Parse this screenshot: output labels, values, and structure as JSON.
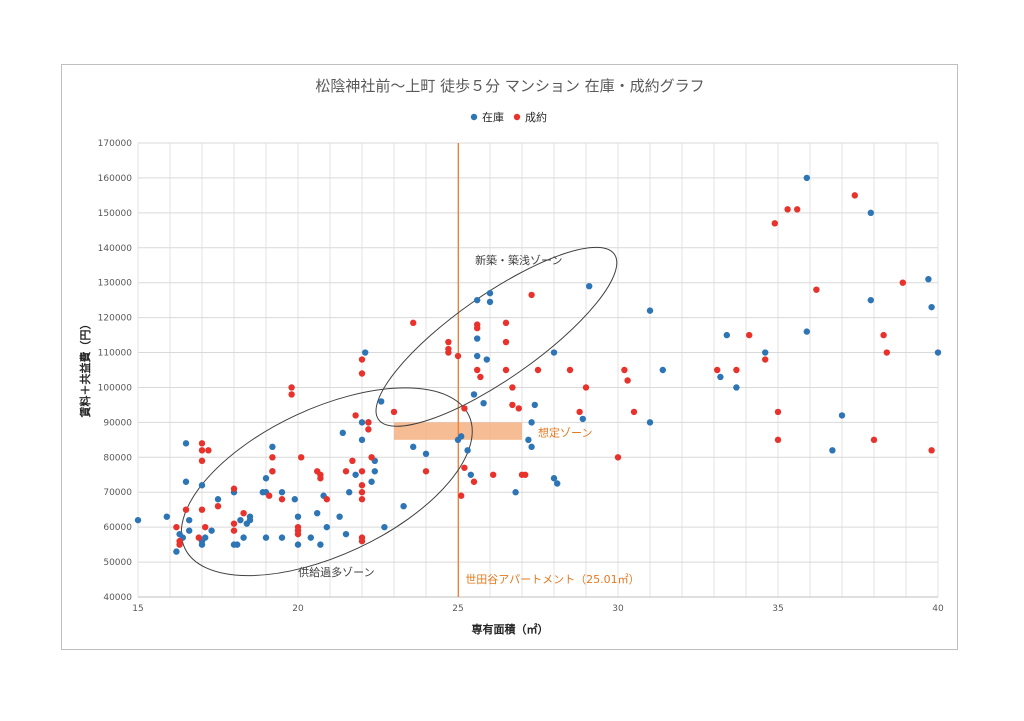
{
  "chart_data": {
    "type": "scatter",
    "title": "松陰神社前〜上町 徒歩５分 マンション 在庫・成約グラフ",
    "xlabel": "専有面積（㎡）",
    "ylabel": "賃料＋共益費（円）",
    "xlim": [
      15,
      40
    ],
    "ylim": [
      40000,
      170000
    ],
    "x_ticks": [
      "15",
      "20",
      "25",
      "30",
      "35",
      "40"
    ],
    "y_ticks": [
      "40000",
      "50000",
      "60000",
      "70000",
      "80000",
      "90000",
      "100000",
      "110000",
      "120000",
      "130000",
      "140000",
      "150000",
      "160000",
      "170000"
    ],
    "grid": true,
    "legend_position": "top",
    "series": [
      {
        "name": "在庫",
        "color": "#2e75b6",
        "points": [
          [
            15,
            62000
          ],
          [
            15.9,
            63000
          ],
          [
            16.2,
            53000
          ],
          [
            16.3,
            58000
          ],
          [
            16.4,
            57000
          ],
          [
            16.5,
            84000
          ],
          [
            16.5,
            73000
          ],
          [
            16.6,
            62000
          ],
          [
            16.6,
            59000
          ],
          [
            17,
            72000
          ],
          [
            17,
            56000
          ],
          [
            17,
            55000
          ],
          [
            17.1,
            57000
          ],
          [
            17.3,
            59000
          ],
          [
            17.5,
            68000
          ],
          [
            18,
            55000
          ],
          [
            18,
            70000
          ],
          [
            18.1,
            55000
          ],
          [
            18.2,
            62000
          ],
          [
            18.3,
            57000
          ],
          [
            18.4,
            61000
          ],
          [
            18.5,
            63000
          ],
          [
            18.5,
            62000
          ],
          [
            18.9,
            70000
          ],
          [
            19,
            74000
          ],
          [
            19,
            70000
          ],
          [
            19,
            57000
          ],
          [
            19.2,
            83000
          ],
          [
            19.2,
            76000
          ],
          [
            19.5,
            70000
          ],
          [
            19.5,
            57000
          ],
          [
            19.9,
            68000
          ],
          [
            20,
            63000
          ],
          [
            20,
            55000
          ],
          [
            20.4,
            57000
          ],
          [
            20.6,
            64000
          ],
          [
            20.7,
            55000
          ],
          [
            20.8,
            69000
          ],
          [
            20.9,
            60000
          ],
          [
            21.3,
            63000
          ],
          [
            21.4,
            87000
          ],
          [
            21.5,
            58000
          ],
          [
            21.6,
            70000
          ],
          [
            21.8,
            75000
          ],
          [
            22,
            90000
          ],
          [
            22,
            85000
          ],
          [
            22.1,
            110000
          ],
          [
            22.2,
            90000
          ],
          [
            22.3,
            73000
          ],
          [
            22.4,
            79000
          ],
          [
            22.4,
            76000
          ],
          [
            22.6,
            96000
          ],
          [
            22.7,
            60000
          ],
          [
            23.3,
            66000
          ],
          [
            23.6,
            83000
          ],
          [
            24,
            81000
          ],
          [
            25,
            85000
          ],
          [
            25.1,
            86000
          ],
          [
            25.3,
            82000
          ],
          [
            25.4,
            75000
          ],
          [
            25.5,
            98000
          ],
          [
            25.6,
            109000
          ],
          [
            25.6,
            114000
          ],
          [
            25.6,
            125000
          ],
          [
            25.8,
            95500
          ],
          [
            25.9,
            108000
          ],
          [
            26,
            124500
          ],
          [
            26,
            127000
          ],
          [
            26.8,
            70000
          ],
          [
            27.2,
            85000
          ],
          [
            27.3,
            83000
          ],
          [
            27.3,
            90000
          ],
          [
            27.4,
            95000
          ],
          [
            28,
            110000
          ],
          [
            28,
            74000
          ],
          [
            28.1,
            72500
          ],
          [
            28.9,
            91000
          ],
          [
            29.1,
            129000
          ],
          [
            31,
            122000
          ],
          [
            31,
            90000
          ],
          [
            31.4,
            105000
          ],
          [
            33.2,
            103000
          ],
          [
            33.4,
            115000
          ],
          [
            33.7,
            100000
          ],
          [
            34.6,
            110000
          ],
          [
            35.9,
            160000
          ],
          [
            35.9,
            116000
          ],
          [
            36.7,
            82000
          ],
          [
            37,
            92000
          ],
          [
            37.9,
            125000
          ],
          [
            37.9,
            150000
          ],
          [
            39.7,
            131000
          ],
          [
            39.8,
            123000
          ],
          [
            40,
            110000
          ]
        ]
      },
      {
        "name": "成約",
        "color": "#e8322b",
        "points": [
          [
            16.2,
            60000
          ],
          [
            16.3,
            56000
          ],
          [
            16.3,
            55000
          ],
          [
            16.5,
            65000
          ],
          [
            16.9,
            57000
          ],
          [
            17,
            84000
          ],
          [
            17,
            82000
          ],
          [
            17,
            79000
          ],
          [
            17,
            65000
          ],
          [
            17.1,
            60000
          ],
          [
            17.2,
            82000
          ],
          [
            17.5,
            66000
          ],
          [
            18,
            71000
          ],
          [
            18,
            61000
          ],
          [
            18,
            59000
          ],
          [
            18.3,
            64000
          ],
          [
            19.1,
            69000
          ],
          [
            19.2,
            80000
          ],
          [
            19.2,
            76000
          ],
          [
            19.5,
            68000
          ],
          [
            19.8,
            100000
          ],
          [
            19.8,
            98000
          ],
          [
            20,
            60000
          ],
          [
            20,
            58000
          ],
          [
            20,
            59000
          ],
          [
            20.1,
            80000
          ],
          [
            20.6,
            76000
          ],
          [
            20.7,
            75000
          ],
          [
            20.7,
            74000
          ],
          [
            20.9,
            68000
          ],
          [
            21.5,
            76000
          ],
          [
            21.7,
            79000
          ],
          [
            21.8,
            92000
          ],
          [
            22,
            108000
          ],
          [
            22,
            104000
          ],
          [
            22,
            76000
          ],
          [
            22,
            72000
          ],
          [
            22,
            70000
          ],
          [
            22,
            68000
          ],
          [
            22,
            57000
          ],
          [
            22,
            56000
          ],
          [
            22.2,
            90000
          ],
          [
            22.2,
            88000
          ],
          [
            22.3,
            80000
          ],
          [
            23,
            93000
          ],
          [
            23.6,
            118500
          ],
          [
            24,
            76000
          ],
          [
            24.7,
            113000
          ],
          [
            24.7,
            110000
          ],
          [
            24.7,
            111000
          ],
          [
            25,
            109000
          ],
          [
            25.1,
            69000
          ],
          [
            25.2,
            77000
          ],
          [
            25.2,
            94000
          ],
          [
            25.5,
            73000
          ],
          [
            25.6,
            118000
          ],
          [
            25.6,
            117000
          ],
          [
            25.6,
            105000
          ],
          [
            25.7,
            103000
          ],
          [
            26.1,
            75000
          ],
          [
            26.5,
            118500
          ],
          [
            26.5,
            113000
          ],
          [
            26.5,
            105000
          ],
          [
            26.7,
            100000
          ],
          [
            26.7,
            95000
          ],
          [
            26.9,
            94000
          ],
          [
            27,
            75000
          ],
          [
            27.1,
            75000
          ],
          [
            27.3,
            126500
          ],
          [
            27.5,
            105000
          ],
          [
            28.5,
            105000
          ],
          [
            28.8,
            93000
          ],
          [
            29,
            100000
          ],
          [
            30,
            80000
          ],
          [
            30.2,
            105000
          ],
          [
            30.3,
            102000
          ],
          [
            30.5,
            93000
          ],
          [
            33.1,
            105000
          ],
          [
            33.7,
            105000
          ],
          [
            34.1,
            115000
          ],
          [
            34.6,
            108000
          ],
          [
            34.9,
            147000
          ],
          [
            35,
            93000
          ],
          [
            35,
            85000
          ],
          [
            35.3,
            151000
          ],
          [
            35.6,
            151000
          ],
          [
            36.2,
            128000
          ],
          [
            37.4,
            155000
          ],
          [
            38,
            85000
          ],
          [
            38.3,
            115000
          ],
          [
            38.4,
            110000
          ],
          [
            38.9,
            130000
          ],
          [
            39.8,
            82000
          ]
        ]
      }
    ],
    "reference_line": {
      "x": 25.01,
      "label": "世田谷アパートメント（25.01㎡）",
      "color": "#ed7d31"
    },
    "target_zone": {
      "x": [
        23,
        27
      ],
      "y": [
        85000,
        90000
      ],
      "label": "想定ゾーン",
      "color": "#f4b183"
    },
    "ellipse_annotations": [
      {
        "label": "供給過多ゾーン",
        "cx": 20.9,
        "cy": 73000,
        "rx": 4.9,
        "ry": 21000,
        "rotate": -25
      },
      {
        "label": "新築・築浅ゾーン",
        "cx": 26.2,
        "cy": 114500,
        "rx": 4.5,
        "ry": 12000,
        "rotate": -35
      }
    ]
  }
}
